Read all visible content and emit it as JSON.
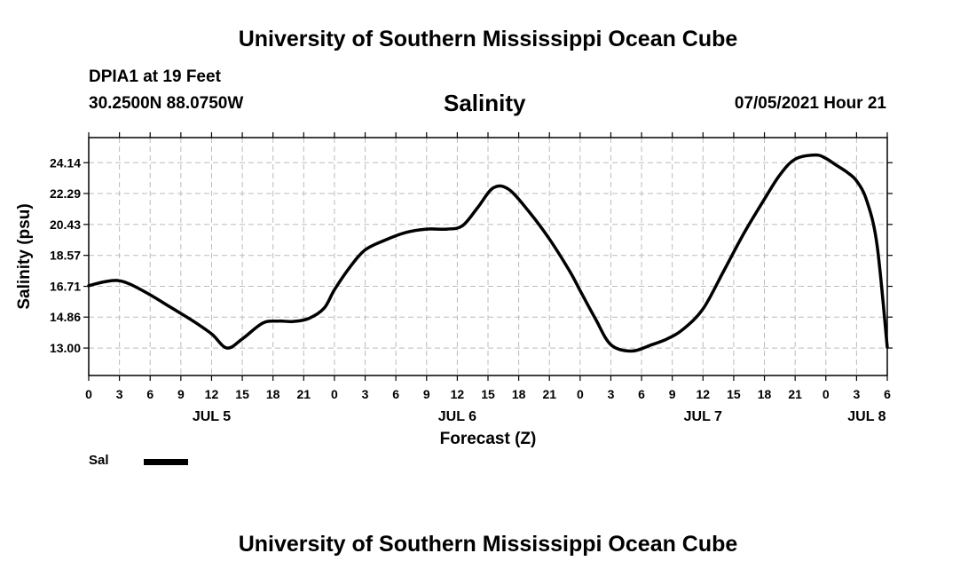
{
  "header": {
    "title": "University of Southern Mississippi Ocean Cube",
    "station": "DPIA1 at 19 Feet",
    "coordinates": "30.2500N  88.0750W",
    "timestamp": "07/05/2021 Hour 21"
  },
  "footer": {
    "title": "University of Southern Mississippi Ocean Cube"
  },
  "legend": {
    "label": "Sal",
    "color": "#000000"
  },
  "chart_data": {
    "type": "line",
    "title": "Salinity",
    "xlabel": "Forecast (Z)",
    "ylabel": "Salinity (psu)",
    "xlim": [
      0,
      78
    ],
    "ylim": [
      11.35,
      25.65
    ],
    "grid": true,
    "x_units": "hours since 2021-07-05 00Z",
    "yticks": [
      13.0,
      14.86,
      16.71,
      18.57,
      20.43,
      22.29,
      24.14
    ],
    "ytick_labels": [
      "13.00",
      "14.86",
      "16.71",
      "18.57",
      "20.43",
      "22.29",
      "24.14"
    ],
    "xticks": [
      0,
      3,
      6,
      9,
      12,
      15,
      18,
      21,
      24,
      27,
      30,
      33,
      36,
      39,
      42,
      45,
      48,
      51,
      54,
      57,
      60,
      63,
      66,
      69,
      72,
      75,
      78
    ],
    "xtick_labels": [
      "0",
      "3",
      "6",
      "9",
      "12",
      "15",
      "18",
      "21",
      "0",
      "3",
      "6",
      "9",
      "12",
      "15",
      "18",
      "21",
      "0",
      "3",
      "6",
      "9",
      "12",
      "15",
      "18",
      "21",
      "0",
      "3",
      "6"
    ],
    "day_labels": [
      {
        "x": 12,
        "label": "JUL 5"
      },
      {
        "x": 36,
        "label": "JUL 6"
      },
      {
        "x": 60,
        "label": "JUL 7"
      },
      {
        "x": 76,
        "label": "JUL 8"
      }
    ],
    "series": [
      {
        "name": "Sal",
        "color": "#000000",
        "x": [
          0,
          1.5,
          2.8,
          4,
          6,
          8,
          10,
          12,
          13.5,
          15,
          17,
          18.5,
          20,
          21.5,
          23,
          24,
          25.5,
          27,
          29,
          31,
          33,
          35,
          36.5,
          38,
          39.5,
          41,
          43,
          45,
          47,
          48,
          49.5,
          51,
          53,
          55,
          56.5,
          58,
          60,
          62,
          64,
          66,
          67.5,
          69,
          71,
          72,
          73,
          74,
          75,
          76,
          77,
          78
        ],
        "values": [
          16.75,
          16.98,
          17.06,
          16.85,
          16.2,
          15.45,
          14.7,
          13.85,
          13.0,
          13.55,
          14.5,
          14.62,
          14.6,
          14.78,
          15.4,
          16.5,
          17.85,
          18.9,
          19.5,
          19.95,
          20.15,
          20.15,
          20.35,
          21.45,
          22.62,
          22.55,
          21.2,
          19.55,
          17.6,
          16.45,
          14.75,
          13.2,
          12.82,
          13.2,
          13.55,
          14.1,
          15.35,
          17.6,
          19.9,
          21.95,
          23.4,
          24.35,
          24.6,
          24.4,
          24.0,
          23.6,
          23.05,
          21.85,
          19.2,
          13.05
        ]
      }
    ]
  }
}
